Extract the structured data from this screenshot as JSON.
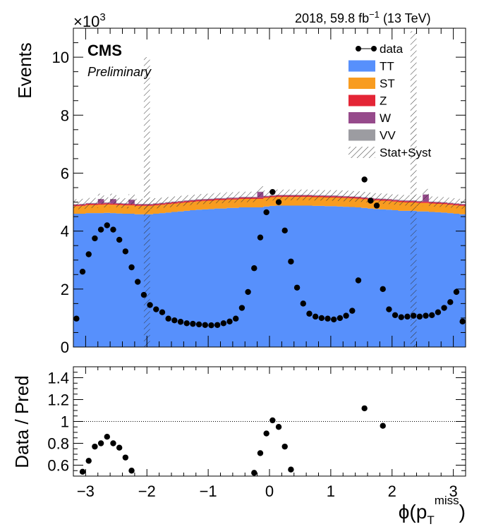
{
  "header": {
    "lumi_label": "2018, 59.8 fb",
    "lumi_exponent": "−1",
    "energy_label": "(13 TeV)",
    "experiment": "CMS",
    "status": "Preliminary",
    "multiplier_base": "×10",
    "multiplier_exponent": "3"
  },
  "legend": {
    "items": [
      {
        "label": "data",
        "kind": "marker"
      },
      {
        "label": "TT",
        "kind": "fill",
        "color": "#5790fc"
      },
      {
        "label": "ST",
        "kind": "fill",
        "color": "#f89c20"
      },
      {
        "label": "Z",
        "kind": "fill",
        "color": "#e42536"
      },
      {
        "label": "W",
        "kind": "fill",
        "color": "#964a8b"
      },
      {
        "label": "VV",
        "kind": "fill",
        "color": "#9c9ca1"
      },
      {
        "label": "Stat+Syst",
        "kind": "hatch"
      }
    ]
  },
  "chart_data": [
    {
      "type": "histogram",
      "panel": "main",
      "ylabel": "Events",
      "ylim": [
        0,
        11
      ],
      "y_ticks": [
        "0",
        "2",
        "4",
        "6",
        "8",
        "10"
      ],
      "y_unit_multiplier": "×10^3",
      "x_range": [
        -3.2,
        3.2
      ],
      "bin_centers": [
        -3.15,
        -3.05,
        -2.95,
        -2.85,
        -2.75,
        -2.65,
        -2.55,
        -2.45,
        -2.35,
        -2.25,
        -2.15,
        -2.05,
        -1.95,
        -1.85,
        -1.75,
        -1.65,
        -1.55,
        -1.45,
        -1.35,
        -1.25,
        -1.15,
        -1.05,
        -0.95,
        -0.85,
        -0.75,
        -0.65,
        -0.55,
        -0.45,
        -0.35,
        -0.25,
        -0.15,
        -0.05,
        0.05,
        0.15,
        0.25,
        0.35,
        0.45,
        0.55,
        0.65,
        0.75,
        0.85,
        0.95,
        1.05,
        1.15,
        1.25,
        1.35,
        1.45,
        1.55,
        1.65,
        1.75,
        1.85,
        1.95,
        2.05,
        2.15,
        2.25,
        2.35,
        2.45,
        2.55,
        2.65,
        2.75,
        2.85,
        2.95,
        3.05,
        3.15
      ],
      "series": [
        {
          "name": "data",
          "kind": "points",
          "values": [
            0.98,
            2.6,
            3.2,
            3.75,
            4.05,
            4.2,
            4.05,
            3.7,
            3.3,
            2.75,
            2.25,
            1.8,
            1.45,
            1.3,
            1.2,
            0.98,
            0.92,
            0.87,
            0.82,
            0.8,
            0.78,
            0.76,
            0.75,
            0.76,
            0.82,
            0.88,
            0.98,
            1.35,
            1.9,
            2.72,
            3.78,
            4.65,
            5.35,
            5.0,
            4.02,
            2.95,
            2.05,
            1.5,
            1.15,
            1.05,
            1.0,
            0.98,
            0.95,
            1.0,
            1.08,
            1.25,
            2.3,
            5.78,
            5.05,
            4.88,
            2.0,
            1.3,
            1.1,
            1.03,
            1.05,
            1.08,
            1.05,
            1.08,
            1.1,
            1.2,
            1.35,
            1.55,
            1.9,
            0.88
          ]
        },
        {
          "name": "TT",
          "kind": "stack",
          "color": "#5790fc",
          "values": [
            4.6,
            4.6,
            4.62,
            4.62,
            4.62,
            4.63,
            4.62,
            4.61,
            4.6,
            4.6,
            4.58,
            4.58,
            4.58,
            4.6,
            4.62,
            4.64,
            4.66,
            4.68,
            4.7,
            4.72,
            4.74,
            4.75,
            4.76,
            4.78,
            4.78,
            4.8,
            4.8,
            4.82,
            4.82,
            4.82,
            4.82,
            4.85,
            4.87,
            4.88,
            4.88,
            4.88,
            4.88,
            4.88,
            4.88,
            4.87,
            4.87,
            4.86,
            4.86,
            4.85,
            4.84,
            4.83,
            4.82,
            4.8,
            4.78,
            4.76,
            4.75,
            4.74,
            4.72,
            4.7,
            4.7,
            4.7,
            4.68,
            4.68,
            4.66,
            4.65,
            4.64,
            4.62,
            4.6,
            4.58
          ]
        },
        {
          "name": "ST",
          "kind": "stack",
          "color": "#f89c20",
          "values": [
            0.26,
            0.27,
            0.28,
            0.28,
            0.29,
            0.29,
            0.29,
            0.29,
            0.29,
            0.29,
            0.29,
            0.29,
            0.29,
            0.29,
            0.29,
            0.29,
            0.29,
            0.29,
            0.29,
            0.29,
            0.29,
            0.29,
            0.29,
            0.29,
            0.29,
            0.29,
            0.29,
            0.29,
            0.29,
            0.29,
            0.29,
            0.3,
            0.3,
            0.3,
            0.3,
            0.3,
            0.3,
            0.3,
            0.3,
            0.3,
            0.3,
            0.3,
            0.3,
            0.3,
            0.3,
            0.3,
            0.3,
            0.3,
            0.3,
            0.3,
            0.3,
            0.3,
            0.3,
            0.3,
            0.29,
            0.29,
            0.29,
            0.29,
            0.29,
            0.29,
            0.29,
            0.29,
            0.29,
            0.29
          ]
        },
        {
          "name": "Z",
          "kind": "stack",
          "color": "#e42536",
          "values": [
            0.04,
            0.04,
            0.04,
            0.04,
            0.04,
            0.04,
            0.04,
            0.04,
            0.04,
            0.04,
            0.04,
            0.04,
            0.04,
            0.04,
            0.04,
            0.04,
            0.04,
            0.04,
            0.04,
            0.04,
            0.04,
            0.04,
            0.04,
            0.04,
            0.04,
            0.04,
            0.04,
            0.04,
            0.04,
            0.04,
            0.04,
            0.04,
            0.04,
            0.04,
            0.04,
            0.04,
            0.04,
            0.04,
            0.04,
            0.04,
            0.04,
            0.04,
            0.04,
            0.04,
            0.04,
            0.04,
            0.04,
            0.04,
            0.04,
            0.04,
            0.04,
            0.04,
            0.04,
            0.04,
            0.04,
            0.04,
            0.04,
            0.04,
            0.04,
            0.04,
            0.04,
            0.04,
            0.04,
            0.04
          ]
        },
        {
          "name": "W",
          "kind": "stack",
          "color": "#964a8b",
          "values": [
            0.02,
            0.02,
            0.02,
            0.02,
            0.15,
            0.02,
            0.15,
            0.02,
            0.02,
            0.15,
            0.02,
            0.02,
            0.02,
            0.02,
            0.02,
            0.02,
            0.02,
            0.02,
            0.02,
            0.02,
            0.02,
            0.02,
            0.02,
            0.02,
            0.02,
            0.02,
            0.02,
            0.02,
            0.02,
            0.02,
            0.2,
            0.02,
            0.02,
            0.02,
            0.02,
            0.02,
            0.02,
            0.02,
            0.02,
            0.02,
            0.02,
            0.02,
            0.02,
            0.02,
            0.02,
            0.02,
            0.02,
            0.02,
            0.02,
            0.02,
            0.02,
            0.02,
            0.02,
            0.02,
            0.02,
            0.02,
            0.02,
            0.25,
            0.02,
            0.02,
            0.02,
            0.02,
            0.02,
            0.02
          ]
        },
        {
          "name": "VV",
          "kind": "stack",
          "color": "#9c9ca1",
          "values": [
            0.01,
            0.01,
            0.01,
            0.01,
            0.01,
            0.01,
            0.01,
            0.01,
            0.01,
            0.01,
            0.01,
            0.01,
            0.01,
            0.01,
            0.01,
            0.01,
            0.01,
            0.01,
            0.01,
            0.01,
            0.01,
            0.01,
            0.01,
            0.01,
            0.01,
            0.01,
            0.01,
            0.01,
            0.01,
            0.01,
            0.01,
            0.01,
            0.01,
            0.01,
            0.01,
            0.01,
            0.01,
            0.01,
            0.01,
            0.01,
            0.01,
            0.01,
            0.01,
            0.01,
            0.01,
            0.01,
            0.01,
            0.01,
            0.01,
            0.01,
            0.01,
            0.01,
            0.01,
            0.01,
            0.01,
            0.01,
            0.01,
            0.01,
            0.01,
            0.01,
            0.01,
            0.01,
            0.01,
            0.01
          ]
        }
      ],
      "uncertainty_bands": [
        {
          "x_range": [
            -2.05,
            -1.95
          ],
          "y_range": [
            0,
            10.0
          ]
        },
        {
          "x_range": [
            2.3,
            2.4
          ],
          "y_range": [
            0,
            10.9
          ]
        }
      ]
    },
    {
      "type": "scatter",
      "panel": "ratio",
      "ylabel": "Data / Pred",
      "xlabel": "ϕ(p",
      "xlabel_sub": "T",
      "xlabel_sup": "miss",
      "xlabel_close": ")",
      "xlim": [
        -3.2,
        3.2
      ],
      "ylim": [
        0.5,
        1.5
      ],
      "x_ticks": [
        "−3",
        "−2",
        "−1",
        "0",
        "1",
        "2",
        "3"
      ],
      "y_ticks": [
        "0.6",
        "0.8",
        "1",
        "1.2",
        "1.4"
      ],
      "reference_line": 1.0,
      "points": [
        {
          "x": -3.05,
          "y": 0.54
        },
        {
          "x": -2.95,
          "y": 0.64
        },
        {
          "x": -2.85,
          "y": 0.77
        },
        {
          "x": -2.75,
          "y": 0.8
        },
        {
          "x": -2.65,
          "y": 0.86
        },
        {
          "x": -2.55,
          "y": 0.8
        },
        {
          "x": -2.45,
          "y": 0.76
        },
        {
          "x": -2.35,
          "y": 0.67
        },
        {
          "x": -2.25,
          "y": 0.55
        },
        {
          "x": -0.25,
          "y": 0.53
        },
        {
          "x": -0.15,
          "y": 0.71
        },
        {
          "x": -0.05,
          "y": 0.89
        },
        {
          "x": 0.05,
          "y": 1.01
        },
        {
          "x": 0.15,
          "y": 0.95
        },
        {
          "x": 0.25,
          "y": 0.77
        },
        {
          "x": 0.35,
          "y": 0.56
        },
        {
          "x": 1.55,
          "y": 1.12
        },
        {
          "x": 1.85,
          "y": 0.96
        }
      ]
    }
  ]
}
